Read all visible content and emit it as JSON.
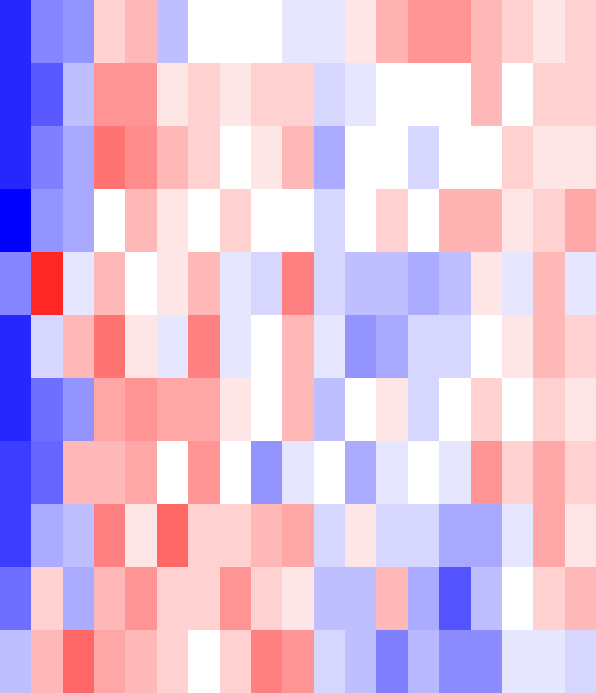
{
  "chart_data": {
    "type": "heatmap",
    "rows": 11,
    "cols": 19,
    "colorscale": {
      "low": "#0000ff",
      "mid": "#ffffff",
      "high": "#ff0000"
    },
    "value_range": [
      -1,
      1
    ],
    "values": [
      [
        -0.85,
        -0.48,
        -0.42,
        0.18,
        0.28,
        -0.25,
        0.0,
        0.0,
        0.0,
        -0.1,
        -0.1,
        0.1,
        0.3,
        0.42,
        0.42,
        0.28,
        0.18,
        0.1,
        0.18
      ],
      [
        -0.85,
        -0.65,
        -0.25,
        0.42,
        0.42,
        0.1,
        0.18,
        0.1,
        0.18,
        0.18,
        -0.16,
        -0.1,
        0.0,
        0.0,
        0.0,
        0.28,
        0.0,
        0.18,
        0.18
      ],
      [
        -0.85,
        -0.5,
        -0.34,
        0.55,
        0.45,
        0.28,
        0.18,
        0.0,
        0.1,
        0.28,
        -0.33,
        0.0,
        0.0,
        -0.16,
        0.0,
        0.0,
        0.18,
        0.1,
        0.1
      ],
      [
        -1.0,
        -0.42,
        -0.34,
        0.0,
        0.28,
        0.1,
        0.0,
        0.18,
        0.0,
        0.0,
        -0.16,
        0.0,
        0.18,
        0.0,
        0.3,
        0.3,
        0.1,
        0.18,
        0.35
      ],
      [
        -0.48,
        0.85,
        -0.1,
        0.28,
        0.0,
        0.1,
        0.28,
        -0.1,
        -0.16,
        0.5,
        -0.16,
        -0.25,
        -0.25,
        -0.33,
        -0.25,
        0.1,
        -0.1,
        0.28,
        -0.1
      ],
      [
        -0.85,
        -0.16,
        0.28,
        0.55,
        0.1,
        -0.1,
        0.5,
        -0.1,
        0.0,
        0.28,
        -0.1,
        -0.42,
        -0.34,
        -0.16,
        -0.16,
        0.0,
        0.1,
        0.28,
        0.18
      ],
      [
        -0.85,
        -0.57,
        -0.42,
        0.35,
        0.42,
        0.35,
        0.35,
        0.1,
        0.0,
        0.28,
        -0.25,
        0.0,
        0.1,
        -0.16,
        0.0,
        0.18,
        0.0,
        0.18,
        0.1
      ],
      [
        -0.76,
        -0.6,
        0.28,
        0.28,
        0.35,
        0.0,
        0.42,
        0.0,
        -0.42,
        -0.1,
        0.0,
        -0.33,
        -0.1,
        0.0,
        -0.1,
        0.42,
        0.18,
        0.35,
        0.18
      ],
      [
        -0.76,
        -0.33,
        -0.25,
        0.5,
        0.1,
        0.6,
        0.18,
        0.18,
        0.28,
        0.35,
        -0.16,
        0.1,
        -0.16,
        -0.16,
        -0.34,
        -0.34,
        -0.1,
        0.35,
        0.1
      ],
      [
        -0.57,
        0.18,
        -0.33,
        0.28,
        0.42,
        0.18,
        0.18,
        0.42,
        0.18,
        0.1,
        -0.25,
        -0.25,
        0.28,
        -0.33,
        -0.67,
        -0.25,
        0.0,
        0.18,
        0.28
      ],
      [
        -0.25,
        0.28,
        0.6,
        0.35,
        0.28,
        0.18,
        0.0,
        0.18,
        0.5,
        0.42,
        -0.16,
        -0.25,
        -0.5,
        -0.28,
        -0.45,
        -0.45,
        -0.1,
        -0.1,
        -0.16
      ]
    ]
  }
}
